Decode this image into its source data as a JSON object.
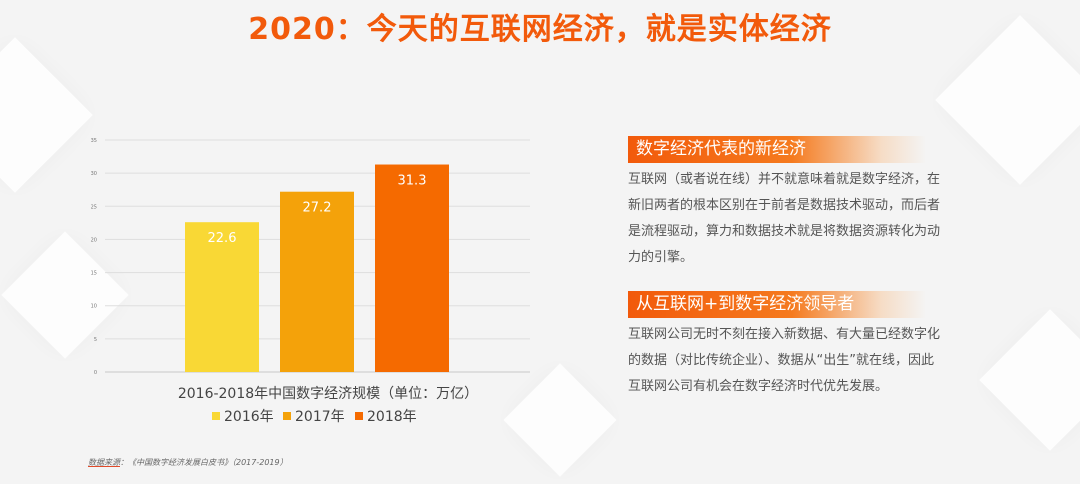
{
  "header": {
    "title": "2020：今天的互联网经济，就是实体经济"
  },
  "colors": {
    "accent": "#f25a0b",
    "bar2016": "#f9d835",
    "bar2017": "#f4a20a",
    "bar2018": "#f56a00"
  },
  "chart_data": {
    "type": "bar",
    "title": "2016-2018年中国数字经济规模（单位：万亿）",
    "categories": [
      "2016年",
      "2017年",
      "2018年"
    ],
    "values": [
      22.6,
      27.2,
      31.3
    ],
    "value_labels": [
      "22.6",
      "27.2",
      "31.3"
    ],
    "ylim": [
      0,
      35
    ],
    "yticks": [
      0,
      5,
      10,
      15,
      20,
      25,
      30,
      35
    ],
    "ytick_labels": [
      "0",
      "5",
      "10",
      "15",
      "20",
      "25",
      "30",
      "35"
    ],
    "grid": true,
    "legend": [
      "2016年",
      "2017年",
      "2018年"
    ],
    "legend_position": "bottom"
  },
  "sections": [
    {
      "heading": "数字经济代表的新经济",
      "body": "互联网（或者说在线）并不就意味着就是数字经济，在新旧两者的根本区别在于前者是数据技术驱动，而后者是流程驱动，算力和数据技术就是将数据资源转化为动力的引擎。"
    },
    {
      "heading": "从互联网+到数字经济领导者",
      "body": "互联网公司无时不刻在接入新数据、有大量已经数字化的数据（对比传统企业）、数据从“出生”就在线，因此互联网公司有机会在数字经济时代优先发展。"
    }
  ],
  "source": {
    "label": "数据来源",
    "text": "：《中国数字经济发展白皮书》（2017-2019）"
  }
}
